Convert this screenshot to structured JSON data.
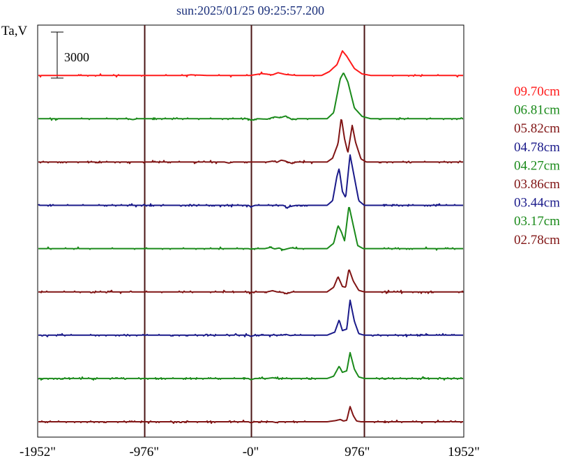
{
  "chart_data": {
    "type": "line",
    "title": "sun:2025/01/25 09:25:57.200",
    "ylabel": "Ta,V",
    "xlabel": "",
    "scale_bar_label": "3000",
    "scale_bar_value": 3000,
    "x_ticks": [
      {
        "value": -1952,
        "label": "-1952\""
      },
      {
        "value": -976,
        "label": "-976\""
      },
      {
        "value": 0,
        "label": "-0\""
      },
      {
        "value": 976,
        "label": "976\""
      },
      {
        "value": 1952,
        "label": "1952\""
      }
    ],
    "xlim": [
      -1952,
      1952
    ],
    "vertical_lines": [
      -976,
      0,
      1040
    ],
    "grid": false,
    "legend_placement": "right",
    "colors": {
      "title": "#1a2f7a",
      "axis": "#000000",
      "gridline": "#4a1414",
      "red": "#ff1a1a",
      "green": "#1a8a1a",
      "maroon": "#801414",
      "blue": "#1a1a8a"
    },
    "series": [
      {
        "name": "09.70cm",
        "color": "#ff1a1a",
        "offset": 8,
        "noise": 0.12,
        "points": [
          [
            -1952,
            0
          ],
          [
            -600,
            0
          ],
          [
            -550,
            40
          ],
          [
            -400,
            0
          ],
          [
            0,
            0
          ],
          [
            100,
            120
          ],
          [
            200,
            40
          ],
          [
            250,
            180
          ],
          [
            320,
            60
          ],
          [
            420,
            0
          ],
          [
            650,
            0
          ],
          [
            720,
            250
          ],
          [
            790,
            700
          ],
          [
            840,
            1600
          ],
          [
            880,
            1250
          ],
          [
            950,
            450
          ],
          [
            1020,
            100
          ],
          [
            1100,
            0
          ],
          [
            1952,
            0
          ]
        ]
      },
      {
        "name": "06.81cm",
        "color": "#1a8a1a",
        "offset": 7,
        "noise": 0.25,
        "points": [
          [
            -1952,
            0
          ],
          [
            -1120,
            0
          ],
          [
            -1080,
            -60
          ],
          [
            -1040,
            0
          ],
          [
            -20,
            0
          ],
          [
            0,
            -100
          ],
          [
            60,
            0
          ],
          [
            150,
            -30
          ],
          [
            220,
            120
          ],
          [
            270,
            60
          ],
          [
            320,
            180
          ],
          [
            380,
            -60
          ],
          [
            420,
            0
          ],
          [
            700,
            0
          ],
          [
            760,
            400
          ],
          [
            820,
            2600
          ],
          [
            850,
            3000
          ],
          [
            890,
            2400
          ],
          [
            950,
            700
          ],
          [
            1020,
            150
          ],
          [
            1100,
            0
          ],
          [
            1952,
            0
          ]
        ]
      },
      {
        "name": "05.82cm",
        "color": "#801414",
        "offset": 6,
        "noise": 0.3,
        "points": [
          [
            -1952,
            0
          ],
          [
            -240,
            0
          ],
          [
            -200,
            -70
          ],
          [
            -160,
            0
          ],
          [
            150,
            0
          ],
          [
            200,
            60
          ],
          [
            240,
            -20
          ],
          [
            280,
            120
          ],
          [
            320,
            60
          ],
          [
            380,
            -100
          ],
          [
            420,
            0
          ],
          [
            700,
            0
          ],
          [
            750,
            250
          ],
          [
            800,
            1200
          ],
          [
            830,
            2900
          ],
          [
            860,
            1500
          ],
          [
            890,
            600
          ],
          [
            930,
            2400
          ],
          [
            960,
            1300
          ],
          [
            1010,
            200
          ],
          [
            1060,
            0
          ],
          [
            1952,
            0
          ]
        ]
      },
      {
        "name": "04.78cm",
        "color": "#1a1a8a",
        "offset": 5,
        "noise": 0.4,
        "points": [
          [
            -1952,
            0
          ],
          [
            -20,
            0
          ],
          [
            0,
            -100
          ],
          [
            40,
            0
          ],
          [
            300,
            0
          ],
          [
            330,
            -150
          ],
          [
            380,
            -50
          ],
          [
            420,
            0
          ],
          [
            700,
            0
          ],
          [
            750,
            300
          ],
          [
            790,
            1900
          ],
          [
            810,
            2400
          ],
          [
            840,
            900
          ],
          [
            870,
            500
          ],
          [
            910,
            3300
          ],
          [
            950,
            1800
          ],
          [
            990,
            300
          ],
          [
            1040,
            0
          ],
          [
            1952,
            0
          ]
        ]
      },
      {
        "name": "04.27cm",
        "color": "#1a8a1a",
        "offset": 4,
        "noise": 0.25,
        "points": [
          [
            -1952,
            0
          ],
          [
            -20,
            0
          ],
          [
            0,
            -40
          ],
          [
            40,
            0
          ],
          [
            130,
            0
          ],
          [
            180,
            80
          ],
          [
            220,
            -20
          ],
          [
            260,
            40
          ],
          [
            300,
            -80
          ],
          [
            330,
            -20
          ],
          [
            370,
            50
          ],
          [
            420,
            0
          ],
          [
            700,
            0
          ],
          [
            760,
            350
          ],
          [
            800,
            1500
          ],
          [
            830,
            1100
          ],
          [
            860,
            500
          ],
          [
            900,
            2800
          ],
          [
            940,
            1500
          ],
          [
            980,
            200
          ],
          [
            1030,
            0
          ],
          [
            1952,
            0
          ]
        ]
      },
      {
        "name": "03.86cm",
        "color": "#801414",
        "offset": 3,
        "noise": 0.3,
        "points": [
          [
            -1952,
            0
          ],
          [
            -20,
            0
          ],
          [
            0,
            -40
          ],
          [
            40,
            0
          ],
          [
            150,
            0
          ],
          [
            200,
            80
          ],
          [
            240,
            0
          ],
          [
            300,
            -40
          ],
          [
            330,
            -120
          ],
          [
            380,
            0
          ],
          [
            700,
            0
          ],
          [
            760,
            300
          ],
          [
            800,
            1000
          ],
          [
            840,
            350
          ],
          [
            870,
            300
          ],
          [
            900,
            1500
          ],
          [
            940,
            700
          ],
          [
            990,
            100
          ],
          [
            1040,
            0
          ],
          [
            1952,
            0
          ]
        ]
      },
      {
        "name": "03.44cm",
        "color": "#1a1a8a",
        "offset": 2,
        "noise": 0.4,
        "points": [
          [
            -1952,
            0
          ],
          [
            -20,
            0
          ],
          [
            0,
            -80
          ],
          [
            40,
            0
          ],
          [
            290,
            0
          ],
          [
            320,
            60
          ],
          [
            360,
            -20
          ],
          [
            400,
            0
          ],
          [
            700,
            0
          ],
          [
            770,
            200
          ],
          [
            810,
            1000
          ],
          [
            840,
            300
          ],
          [
            880,
            400
          ],
          [
            910,
            2300
          ],
          [
            950,
            900
          ],
          [
            990,
            100
          ],
          [
            1040,
            0
          ],
          [
            1952,
            0
          ]
        ]
      },
      {
        "name": "03.17cm",
        "color": "#1a8a1a",
        "offset": 1,
        "noise": 0.4,
        "points": [
          [
            -1952,
            0
          ],
          [
            -20,
            0
          ],
          [
            0,
            -80
          ],
          [
            40,
            0
          ],
          [
            150,
            0
          ],
          [
            200,
            50
          ],
          [
            240,
            0
          ],
          [
            700,
            0
          ],
          [
            760,
            150
          ],
          [
            810,
            800
          ],
          [
            840,
            400
          ],
          [
            880,
            500
          ],
          [
            910,
            1700
          ],
          [
            950,
            600
          ],
          [
            990,
            100
          ],
          [
            1040,
            0
          ],
          [
            1952,
            0
          ]
        ]
      },
      {
        "name": "02.78cm",
        "color": "#801414",
        "offset": 0,
        "noise": 0.35,
        "points": [
          [
            -1952,
            0
          ],
          [
            -20,
            0
          ],
          [
            0,
            -60
          ],
          [
            40,
            0
          ],
          [
            200,
            0
          ],
          [
            230,
            -50
          ],
          [
            260,
            0
          ],
          [
            700,
            0
          ],
          [
            780,
            80
          ],
          [
            820,
            150
          ],
          [
            850,
            50
          ],
          [
            880,
            100
          ],
          [
            910,
            1000
          ],
          [
            940,
            400
          ],
          [
            970,
            50
          ],
          [
            1010,
            0
          ],
          [
            1952,
            0
          ]
        ]
      }
    ]
  }
}
